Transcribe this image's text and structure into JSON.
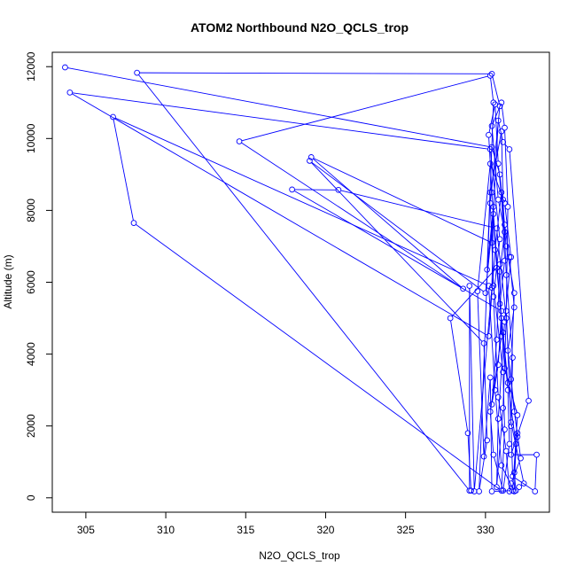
{
  "chart_data": {
    "type": "line",
    "title": "ATOM2 Northbound N2O_QCLS_trop",
    "xlabel": "N2O_QCLS_trop",
    "ylabel": "Altitude (m)",
    "xlim": [
      302.9,
      334.0
    ],
    "ylim": [
      -400,
      12400
    ],
    "xticks": [
      305,
      310,
      315,
      320,
      325,
      330
    ],
    "yticks": [
      0,
      2000,
      4000,
      6000,
      8000,
      10000,
      12000
    ],
    "grid": false,
    "legend": "none",
    "series_color": "#0000ff",
    "marker": "open-circle",
    "points": [
      [
        303.7,
        11980
      ],
      [
        330.4,
        9760
      ],
      [
        330.9,
        9000
      ],
      [
        331.2,
        7600
      ],
      [
        331.5,
        6700
      ],
      [
        331.8,
        5300
      ],
      [
        331.4,
        4100
      ],
      [
        331.8,
        2400
      ],
      [
        332.0,
        1800
      ],
      [
        332.2,
        1100
      ],
      [
        331.6,
        400
      ],
      [
        331.5,
        180
      ],
      [
        331.3,
        1300
      ],
      [
        330.8,
        2800
      ],
      [
        330.5,
        5600
      ],
      [
        330.9,
        7200
      ],
      [
        330.3,
        9700
      ],
      [
        304.0,
        11280
      ],
      [
        330.2,
        4500
      ],
      [
        330.6,
        6900
      ],
      [
        331.0,
        8500
      ],
      [
        331.2,
        6600
      ],
      [
        330.9,
        5400
      ],
      [
        331.1,
        4600
      ],
      [
        331.4,
        3200
      ],
      [
        331.9,
        1500
      ],
      [
        331.8,
        180
      ],
      [
        331.0,
        900
      ],
      [
        330.6,
        3000
      ],
      [
        330.2,
        5900
      ],
      [
        306.7,
        10600
      ],
      [
        308.0,
        7650
      ],
      [
        331.0,
        200
      ],
      [
        331.2,
        1900
      ],
      [
        331.1,
        3500
      ],
      [
        330.5,
        5900
      ],
      [
        330.3,
        8200
      ],
      [
        330.9,
        10900
      ],
      [
        330.4,
        11800
      ],
      [
        308.2,
        11830
      ],
      [
        329.0,
        200
      ],
      [
        329.0,
        5900
      ],
      [
        329.3,
        180
      ],
      [
        330.4,
        5850
      ],
      [
        330.5,
        8100
      ],
      [
        330.1,
        6350
      ],
      [
        330.5,
        11000
      ],
      [
        330.3,
        11750
      ],
      [
        314.6,
        9920
      ],
      [
        328.6,
        5820
      ],
      [
        319.1,
        9480
      ],
      [
        330.4,
        7100
      ],
      [
        330.8,
        10500
      ],
      [
        331.1,
        9900
      ],
      [
        331.5,
        9700
      ],
      [
        332.7,
        2700
      ],
      [
        331.6,
        1200
      ],
      [
        333.2,
        1200
      ],
      [
        333.1,
        180
      ],
      [
        331.7,
        600
      ],
      [
        331.6,
        2000
      ],
      [
        331.3,
        5200
      ],
      [
        331.4,
        8100
      ],
      [
        331.2,
        10300
      ],
      [
        331.0,
        11000
      ],
      [
        330.4,
        10350
      ],
      [
        330.8,
        8300
      ],
      [
        331.2,
        7400
      ],
      [
        330.9,
        6300
      ],
      [
        331.0,
        4500
      ],
      [
        330.3,
        2400
      ],
      [
        330.5,
        1200
      ],
      [
        331.1,
        200
      ],
      [
        331.5,
        1500
      ],
      [
        331.4,
        3000
      ],
      [
        331.0,
        5000
      ],
      [
        330.7,
        6400
      ],
      [
        330.4,
        8500
      ],
      [
        330.2,
        10100
      ],
      [
        330.6,
        10950
      ],
      [
        330.8,
        9300
      ],
      [
        331.3,
        7000
      ],
      [
        331.8,
        5700
      ],
      [
        331.6,
        3300
      ],
      [
        332.0,
        1700
      ],
      [
        331.8,
        700
      ],
      [
        331.9,
        200
      ],
      [
        332.1,
        300
      ],
      [
        332.4,
        400
      ],
      [
        331.6,
        2100
      ],
      [
        331.7,
        3900
      ],
      [
        331.3,
        6200
      ],
      [
        331.1,
        8300
      ],
      [
        331.0,
        10200
      ],
      [
        330.3,
        8500
      ],
      [
        329.6,
        180
      ],
      [
        330.1,
        1600
      ],
      [
        329.9,
        4300
      ],
      [
        319.0,
        9380
      ],
      [
        330.0,
        5700
      ],
      [
        330.5,
        7900
      ],
      [
        331.2,
        3600
      ],
      [
        332.0,
        2300
      ],
      [
        331.7,
        200
      ],
      [
        330.4,
        180
      ],
      [
        330.3,
        3350
      ],
      [
        329.9,
        1150
      ],
      [
        329.5,
        5750
      ],
      [
        330.3,
        9300
      ],
      [
        331.2,
        8200
      ],
      [
        331.6,
        6700
      ],
      [
        331.2,
        4900
      ],
      [
        330.8,
        2200
      ],
      [
        330.7,
        300
      ],
      [
        331.1,
        2500
      ],
      [
        331.3,
        5000
      ],
      [
        330.7,
        7500
      ],
      [
        320.8,
        8570
      ],
      [
        317.9,
        8580
      ],
      [
        331.0,
        5200
      ],
      [
        330.8,
        3700
      ],
      [
        330.4,
        2600
      ],
      [
        330.7,
        4400
      ],
      [
        330.9,
        6500
      ],
      [
        327.8,
        5000
      ],
      [
        328.9,
        1800
      ],
      [
        329.1,
        200
      ]
    ]
  }
}
